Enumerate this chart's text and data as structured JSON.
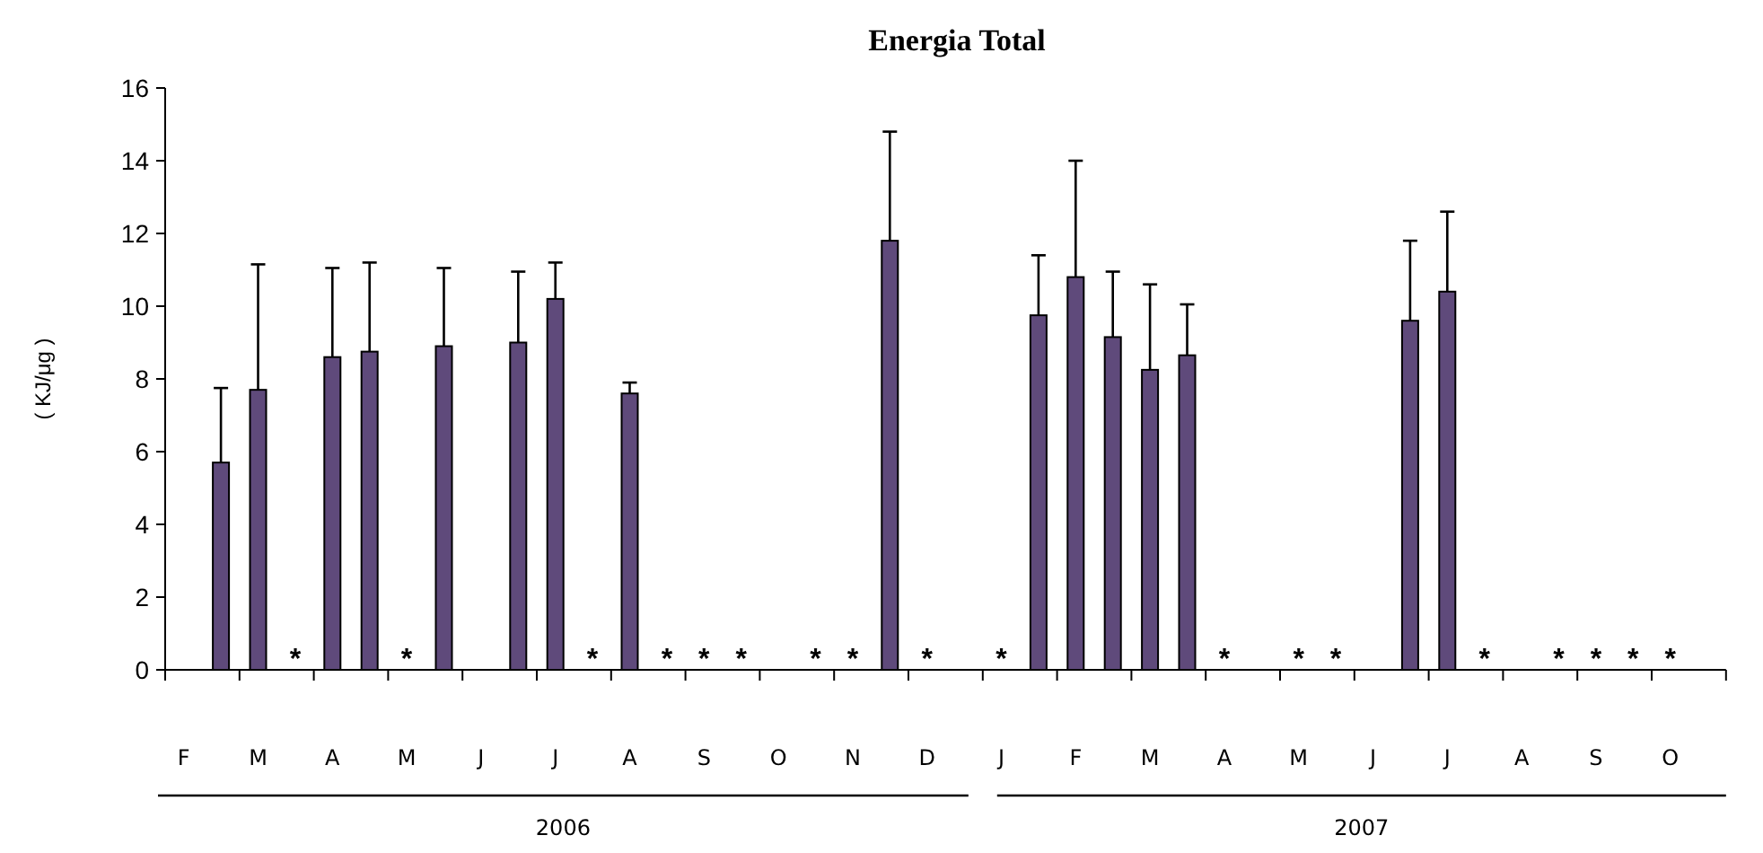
{
  "chart_data": {
    "type": "bar",
    "title": "Energia Total",
    "ylabel": "( KJ/μg )",
    "categories": [
      "F",
      null,
      "M",
      null,
      "A",
      null,
      "M",
      null,
      "J",
      null,
      "J",
      null,
      "A",
      null,
      "S",
      null,
      "O",
      null,
      "N",
      null,
      "D",
      null,
      "J",
      null,
      "F",
      null,
      "M",
      null,
      "A",
      null,
      "M",
      null,
      "J",
      null,
      "J",
      null,
      "A",
      null,
      "S",
      null,
      "O",
      null
    ],
    "values": [
      null,
      5.7,
      7.7,
      null,
      8.6,
      8.75,
      null,
      8.9,
      null,
      9.0,
      10.2,
      null,
      7.6,
      null,
      null,
      null,
      null,
      null,
      null,
      11.8,
      null,
      null,
      null,
      9.75,
      10.8,
      9.15,
      8.25,
      8.65,
      null,
      null,
      null,
      null,
      null,
      9.6,
      10.4,
      null,
      null,
      null,
      null,
      null,
      null,
      null
    ],
    "errors": [
      null,
      [
        5.7,
        7.75
      ],
      [
        7.7,
        11.15
      ],
      null,
      [
        8.6,
        11.05
      ],
      [
        8.75,
        11.2
      ],
      null,
      [
        8.9,
        11.05
      ],
      null,
      [
        9.0,
        10.95
      ],
      [
        10.2,
        11.2
      ],
      null,
      [
        7.6,
        7.9
      ],
      null,
      null,
      null,
      null,
      null,
      null,
      [
        11.8,
        14.8
      ],
      null,
      null,
      null,
      [
        9.75,
        11.4
      ],
      [
        10.8,
        14.0
      ],
      [
        9.15,
        10.95
      ],
      [
        8.25,
        10.6
      ],
      [
        8.65,
        10.05
      ],
      null,
      null,
      null,
      null,
      null,
      [
        9.6,
        11.8
      ],
      [
        10.4,
        12.6
      ],
      null,
      null,
      null,
      null,
      null,
      null,
      null
    ],
    "value_labels": [
      null,
      null,
      null,
      "*",
      null,
      null,
      "*",
      null,
      null,
      null,
      null,
      "*",
      null,
      "*",
      "*",
      "*",
      null,
      "*",
      "*",
      null,
      "*",
      null,
      "*",
      null,
      null,
      null,
      null,
      null,
      "*",
      null,
      "*",
      "*",
      null,
      null,
      null,
      "*",
      null,
      "*",
      "*",
      "*",
      "*",
      null
    ],
    "color": "#5f4a7b",
    "ylim": [
      0,
      16
    ],
    "yticks": [
      0,
      2,
      4,
      6,
      8,
      10,
      12,
      14,
      16
    ],
    "grid": false,
    "annotations": [
      "2006",
      "2007"
    ]
  }
}
